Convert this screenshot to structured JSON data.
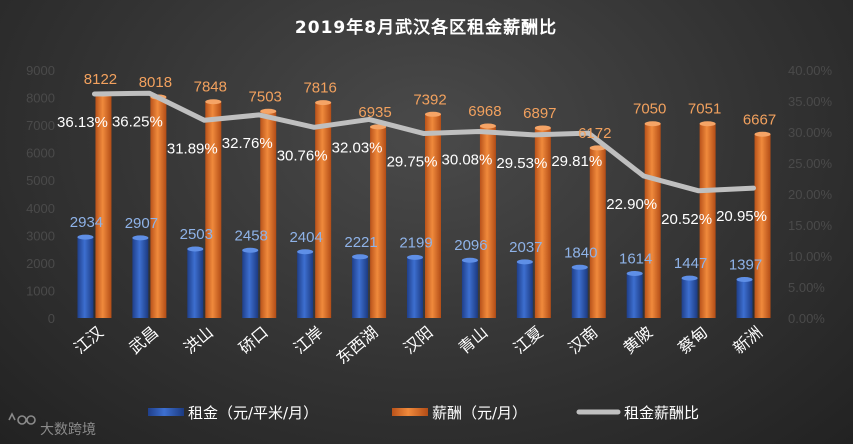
{
  "chart_data": {
    "type": "bar",
    "title": "2019年8月武汉各区租金薪酬比",
    "categories": [
      "江汉",
      "武昌",
      "洪山",
      "硚口",
      "江岸",
      "东西湖",
      "汉阳",
      "青山",
      "江夏",
      "汉南",
      "黄陂",
      "蔡甸",
      "新洲"
    ],
    "series": [
      {
        "name": "租金（元/平米/月）",
        "type": "bar",
        "axis": "left",
        "color": "#2f5cb8",
        "values": [
          2934,
          2907,
          2503,
          2458,
          2404,
          2221,
          2199,
          2096,
          2037,
          1840,
          1614,
          1447,
          1397
        ]
      },
      {
        "name": "薪酬（元/月）",
        "type": "bar",
        "axis": "left",
        "color": "#e8742a",
        "values": [
          8122,
          8018,
          7848,
          7503,
          7816,
          6935,
          7392,
          6968,
          6897,
          6172,
          7050,
          7051,
          6667
        ]
      },
      {
        "name": "租金薪酬比",
        "type": "line",
        "axis": "right",
        "color": "#bfbfbf",
        "values": [
          36.13,
          36.25,
          31.89,
          32.76,
          30.76,
          32.03,
          29.75,
          30.08,
          29.53,
          29.81,
          22.9,
          20.52,
          20.95
        ],
        "labels": [
          "36.13%",
          "36.25%",
          "31.89%",
          "32.76%",
          "30.76%",
          "32.03%",
          "29.75%",
          "30.08%",
          "29.53%",
          "29.81%",
          "22.90%",
          "20.52%",
          "20.95%"
        ]
      }
    ],
    "y_left": {
      "min": 0,
      "max": 9000,
      "ticks": [
        "0",
        "1000",
        "2000",
        "3000",
        "4000",
        "5000",
        "6000",
        "7000",
        "8000",
        "9000"
      ]
    },
    "y_right": {
      "min": 0,
      "max": 40,
      "ticks": [
        "0.00%",
        "5.00%",
        "10.00%",
        "15.00%",
        "20.00%",
        "25.00%",
        "30.00%",
        "35.00%",
        "40.00%"
      ]
    },
    "legend_position": "bottom"
  },
  "watermark": {
    "text": "大数跨境"
  }
}
